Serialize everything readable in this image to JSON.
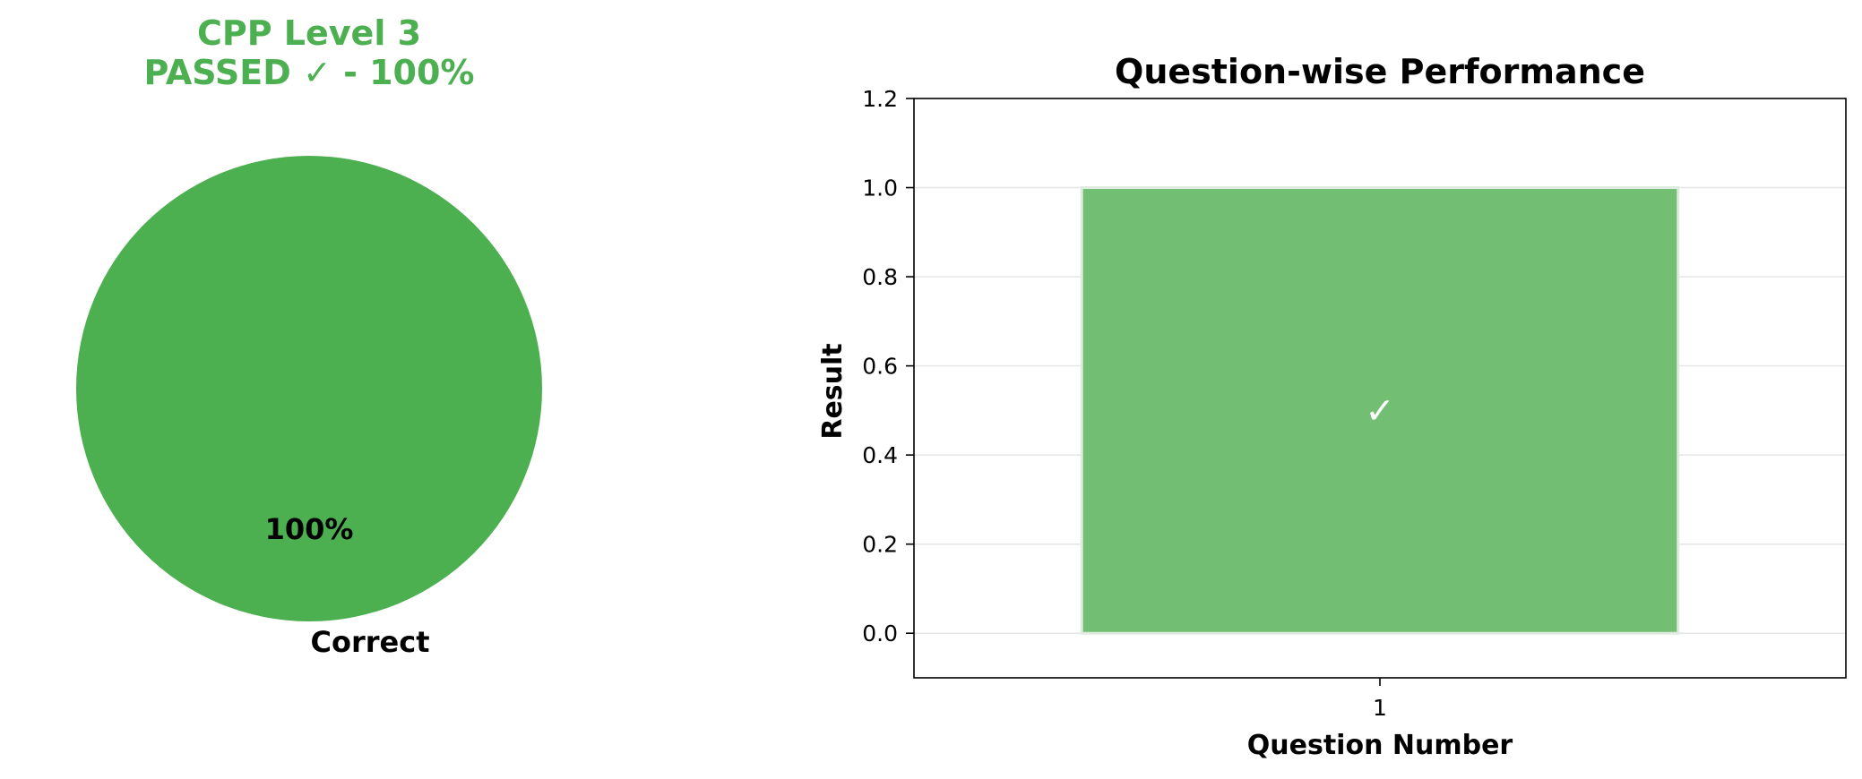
{
  "chart_data": [
    {
      "type": "pie",
      "title": "CPP Level 3\nPASSED ✓ - 100%",
      "title_lines": [
        "CPP Level 3",
        "PASSED ✓ - 100%"
      ],
      "slices": [
        {
          "label": "Correct",
          "value": 100,
          "pct_label": "100%"
        }
      ],
      "colors": {
        "title": "#4caf50",
        "slice": "#4caf50",
        "text": "#000000"
      }
    },
    {
      "type": "bar",
      "title": "Question-wise Performance",
      "xlabel": "Question Number",
      "ylabel": "Result",
      "categories": [
        "1"
      ],
      "values": [
        1
      ],
      "bar_labels": [
        "✓"
      ],
      "ylim": [
        -0.1,
        1.2
      ],
      "yticks": [
        0.0,
        0.2,
        0.4,
        0.6,
        0.8,
        1.0,
        1.2
      ],
      "ytick_labels": [
        "0.0",
        "0.2",
        "0.4",
        "0.6",
        "0.8",
        "1.0",
        "1.2"
      ],
      "grid": "y",
      "colors": {
        "bar": "#72bf73",
        "bar_edge": "#e0ebe0",
        "grid": "#e6e6e6",
        "mark_label": "#ffffff"
      }
    }
  ]
}
